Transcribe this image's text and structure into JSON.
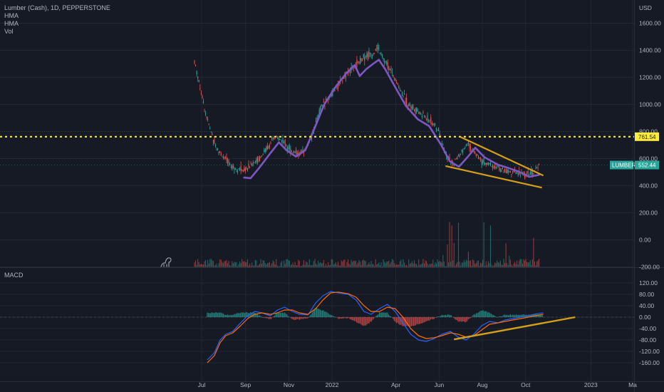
{
  "header": {
    "symbol_line": "Lumber (Cash), 1D, PEPPERSTONE",
    "indicator_1": "HMA",
    "indicator_2": "HMA",
    "indicator_3": "Vol",
    "currency": "USD"
  },
  "macd_pane": {
    "label": "MACD"
  },
  "price_tags": {
    "resistance_value": "761.54",
    "last_symbol": "LUMBER",
    "last_value": "552.44"
  },
  "colors": {
    "background": "#161a25",
    "up": "#26a69a",
    "down": "#ef5350",
    "hma": "#7e57c2",
    "resistance": "#ffeb3b",
    "trendline": "#d4a017",
    "macd_line": "#2962ff",
    "signal_line": "#ff6d00"
  },
  "chart_data": [
    {
      "type": "candlestick",
      "title": "Lumber (Cash), 1D, PEPPERSTONE",
      "x_tick_labels": [
        "Jul",
        "Sep",
        "Nov",
        "2022",
        "Apr",
        "Jun",
        "Aug",
        "Oct",
        "2023",
        "Ma"
      ],
      "y_tick_labels": [
        "400.00",
        "600.00",
        "800.00",
        "1000.00",
        "1200.00",
        "1400.00",
        "1600.00"
      ],
      "ylim": [
        300,
        1700
      ],
      "price_path": {
        "x": [
          "2021-06-21",
          "2021-06-28",
          "2021-07-06",
          "2021-07-14",
          "2021-07-22",
          "2021-08-02",
          "2021-08-12",
          "2021-08-20",
          "2021-09-01",
          "2021-09-10",
          "2021-09-22",
          "2021-10-04",
          "2021-10-14",
          "2021-10-26",
          "2021-11-05",
          "2021-11-16",
          "2021-11-26",
          "2021-12-06",
          "2021-12-16",
          "2021-12-28",
          "2022-01-07",
          "2022-01-18",
          "2022-01-28",
          "2022-02-08",
          "2022-02-18",
          "2022-03-01",
          "2022-03-07",
          "2022-03-15",
          "2022-03-25",
          "2022-04-06",
          "2022-04-18",
          "2022-04-28",
          "2022-05-09",
          "2022-05-20",
          "2022-06-01",
          "2022-06-10",
          "2022-06-20",
          "2022-06-30",
          "2022-07-11",
          "2022-07-21",
          "2022-07-29",
          "2022-08-09",
          "2022-08-19",
          "2022-08-30",
          "2022-09-09",
          "2022-09-20",
          "2022-09-30",
          "2022-10-12",
          "2022-10-20"
        ],
        "y": [
          1320,
          1150,
          950,
          800,
          680,
          600,
          550,
          520,
          520,
          560,
          610,
          700,
          760,
          720,
          660,
          630,
          680,
          800,
          980,
          1050,
          1120,
          1200,
          1260,
          1320,
          1360,
          1380,
          1420,
          1330,
          1250,
          1120,
          1010,
          960,
          920,
          880,
          800,
          640,
          560,
          620,
          710,
          640,
          590,
          560,
          540,
          515,
          500,
          490,
          485,
          495,
          552
        ]
      },
      "hma_line": {
        "x": [
          "2021-08-30",
          "2021-09-08",
          "2021-09-20",
          "2021-10-06",
          "2021-10-18",
          "2021-10-29",
          "2021-11-11",
          "2021-11-24",
          "2021-12-07",
          "2021-12-21",
          "2022-01-06",
          "2022-01-21",
          "2022-02-02",
          "2022-02-09",
          "2022-02-18",
          "2022-02-28",
          "2022-03-08",
          "2022-03-17",
          "2022-04-01",
          "2022-04-15",
          "2022-05-02",
          "2022-05-18",
          "2022-06-04",
          "2022-06-16",
          "2022-06-29",
          "2022-07-11",
          "2022-07-22",
          "2022-08-04",
          "2022-08-23",
          "2022-09-07",
          "2022-09-21",
          "2022-10-06",
          "2022-10-20"
        ],
        "y": [
          460,
          455,
          530,
          640,
          720,
          660,
          615,
          660,
          820,
          1000,
          1130,
          1230,
          1290,
          1210,
          1260,
          1300,
          1330,
          1260,
          1120,
          990,
          890,
          840,
          700,
          580,
          540,
          610,
          680,
          610,
          555,
          530,
          505,
          465,
          480
        ]
      },
      "resistance_level": 761.54,
      "last_price": 552.44,
      "falling_wedge": {
        "upper_line": {
          "x": [
            "2022-07-01",
            "2022-10-26"
          ],
          "y": [
            760,
            475
          ]
        },
        "lower_line": {
          "x": [
            "2022-06-10",
            "2022-10-24"
          ],
          "y": [
            545,
            385
          ]
        }
      }
    },
    {
      "type": "bar",
      "title": "Vol",
      "y_tick_labels": [
        "-200.00",
        "0.00",
        "200.00"
      ],
      "ylim": [
        -200,
        350
      ]
    },
    {
      "type": "line",
      "title": "MACD",
      "y_tick_labels": [
        "120.00",
        "80.00",
        "40.00",
        "0.00",
        "-40.00",
        "-80.00",
        "-120.00",
        "-160.00"
      ],
      "ylim": [
        -165,
        130
      ],
      "series": [
        {
          "x": [
            "2021-07-09",
            "2021-07-19",
            "2021-07-27",
            "2021-08-04",
            "2021-08-14",
            "2021-08-25",
            "2021-09-04",
            "2021-09-14",
            "2021-09-24",
            "2021-10-06",
            "2021-10-16",
            "2021-10-26",
            "2021-11-06",
            "2021-11-16",
            "2021-11-28",
            "2021-12-09",
            "2021-12-19",
            "2021-12-30",
            "2022-01-10",
            "2022-01-24",
            "2022-02-04",
            "2022-02-15",
            "2022-02-25",
            "2022-03-09",
            "2022-03-20",
            "2022-03-31",
            "2022-04-11",
            "2022-04-22",
            "2022-05-03",
            "2022-05-14",
            "2022-05-25",
            "2022-06-05",
            "2022-06-17",
            "2022-06-28",
            "2022-07-09",
            "2022-07-20",
            "2022-07-31",
            "2022-08-11",
            "2022-08-23",
            "2022-09-02",
            "2022-09-13",
            "2022-09-24",
            "2022-10-05",
            "2022-10-16",
            "2022-10-26"
          ],
          "y": [
            -150,
            -125,
            -80,
            -60,
            -50,
            -20,
            5,
            20,
            15,
            5,
            25,
            35,
            20,
            10,
            8,
            50,
            75,
            90,
            85,
            80,
            60,
            20,
            10,
            30,
            45,
            20,
            -20,
            -60,
            -80,
            -85,
            -75,
            -60,
            -50,
            -70,
            -80,
            -60,
            -30,
            -15,
            -20,
            -10,
            -5,
            0,
            5,
            12,
            15
          ]
        },
        {
          "x": [
            "2021-07-09",
            "2021-07-19",
            "2021-07-27",
            "2021-08-04",
            "2021-08-14",
            "2021-08-25",
            "2021-09-04",
            "2021-09-14",
            "2021-09-24",
            "2021-10-06",
            "2021-10-16",
            "2021-10-26",
            "2021-11-06",
            "2021-11-16",
            "2021-11-28",
            "2021-12-09",
            "2021-12-19",
            "2021-12-30",
            "2022-01-10",
            "2022-01-24",
            "2022-02-04",
            "2022-02-15",
            "2022-02-25",
            "2022-03-09",
            "2022-03-20",
            "2022-03-31",
            "2022-04-11",
            "2022-04-22",
            "2022-05-03",
            "2022-05-14",
            "2022-05-25",
            "2022-06-05",
            "2022-06-17",
            "2022-06-28",
            "2022-07-09",
            "2022-07-20",
            "2022-07-31",
            "2022-08-11",
            "2022-08-23",
            "2022-09-02",
            "2022-09-13",
            "2022-09-24",
            "2022-10-05",
            "2022-10-16",
            "2022-10-26"
          ],
          "y": [
            -160,
            -135,
            -90,
            -65,
            -55,
            -30,
            -5,
            10,
            15,
            10,
            15,
            25,
            25,
            15,
            10,
            30,
            60,
            85,
            88,
            82,
            70,
            40,
            20,
            20,
            35,
            30,
            0,
            -40,
            -65,
            -75,
            -72,
            -65,
            -55,
            -60,
            -70,
            -65,
            -45,
            -25,
            -20,
            -15,
            -10,
            -5,
            0,
            6,
            10
          ]
        }
      ],
      "zero_line": 0,
      "trendline": {
        "x": [
          "2022-06-22",
          "2022-12-10"
        ],
        "y": [
          -78,
          0
        ]
      }
    }
  ]
}
